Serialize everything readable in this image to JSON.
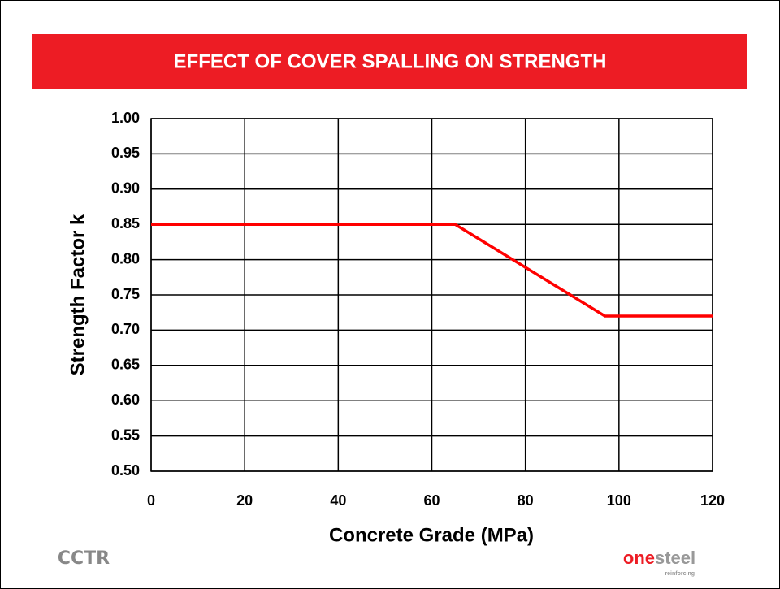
{
  "chart_data": {
    "type": "line",
    "title": "EFFECT OF COVER SPALLING ON STRENGTH",
    "x_label": "Concrete Grade (MPa)",
    "y_label": "Strength Factor k",
    "x": [
      0,
      65,
      97,
      120
    ],
    "series": [
      {
        "name": "Strength Factor k",
        "color": "#ff0000",
        "values": [
          0.85,
          0.85,
          0.72,
          0.72
        ]
      }
    ],
    "xlim": [
      0,
      120
    ],
    "xticks": [
      0,
      20,
      40,
      60,
      80,
      100,
      120
    ],
    "ylim": [
      0.5,
      1.0
    ],
    "yticks": [
      {
        "value": 0.5,
        "label": "0.50"
      },
      {
        "value": 0.55,
        "label": "0.55"
      },
      {
        "value": 0.6,
        "label": "0.60"
      },
      {
        "value": 0.65,
        "label": "0.65"
      },
      {
        "value": 0.7,
        "label": "0.70"
      },
      {
        "value": 0.75,
        "label": "0.75"
      },
      {
        "value": 0.8,
        "label": "0.80"
      },
      {
        "value": 0.85,
        "label": "0.85"
      },
      {
        "value": 0.9,
        "label": "0.90"
      },
      {
        "value": 0.95,
        "label": "0.95"
      },
      {
        "value": 1.0,
        "label": "1.00"
      }
    ],
    "grid": true
  },
  "logos": {
    "left": "CCTR",
    "right_bold": "one",
    "right_light": "steel",
    "right_sub": "reinforcing"
  }
}
